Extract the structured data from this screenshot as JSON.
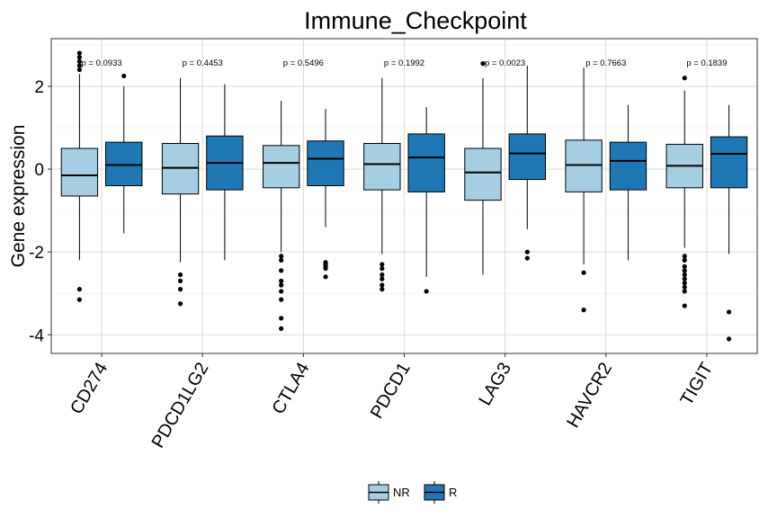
{
  "chart_data": {
    "type": "box",
    "title": "Immune_Checkpoint",
    "xlabel": "",
    "ylabel": "Gene expression",
    "ylim": [
      -4.45,
      3.15
    ],
    "yticks": [
      -4,
      -2,
      0,
      2
    ],
    "ytick_labels": [
      "-4",
      "-2",
      "0",
      "2"
    ],
    "grid": true,
    "legend_position": "bottom",
    "categories": [
      "CD274",
      "PDCD1LG2",
      "CTLA4",
      "PDCD1",
      "LAG3",
      "HAVCR2",
      "TIGIT"
    ],
    "pvalues": [
      "p = 0.0933",
      "p = 0.4453",
      "p = 0.5496",
      "p = 0.1992",
      "p = 0.0023",
      "p = 0.7663",
      "p = 0.1839"
    ],
    "series": [
      {
        "name": "NR",
        "color": "#a6cee3",
        "boxes": [
          {
            "q1": -0.65,
            "median": -0.15,
            "q3": 0.5,
            "wlo": -2.2,
            "whi": 2.3,
            "outliers": [
              2.8,
              2.7,
              2.6,
              2.5,
              2.4,
              -2.9,
              -3.15
            ]
          },
          {
            "q1": -0.6,
            "median": 0.03,
            "q3": 0.62,
            "wlo": -2.25,
            "whi": 2.2,
            "outliers": [
              -2.55,
              -2.7,
              -2.9,
              -3.25
            ]
          },
          {
            "q1": -0.45,
            "median": 0.15,
            "q3": 0.57,
            "wlo": -2.0,
            "whi": 1.65,
            "outliers": [
              -2.1,
              -2.2,
              -2.45,
              -2.7,
              -2.8,
              -2.95,
              -3.15,
              -3.6,
              -3.85
            ]
          },
          {
            "q1": -0.5,
            "median": 0.12,
            "q3": 0.62,
            "wlo": -2.05,
            "whi": 2.2,
            "outliers": [
              -2.3,
              -2.4,
              -2.55,
              -2.65,
              -2.8,
              -2.9
            ]
          },
          {
            "q1": -0.75,
            "median": -0.08,
            "q3": 0.5,
            "wlo": -2.55,
            "whi": 2.2,
            "outliers": [
              2.55
            ]
          },
          {
            "q1": -0.55,
            "median": 0.1,
            "q3": 0.7,
            "wlo": -2.3,
            "whi": 2.45,
            "outliers": [
              -2.5,
              -3.4
            ]
          },
          {
            "q1": -0.45,
            "median": 0.08,
            "q3": 0.6,
            "wlo": -1.9,
            "whi": 1.9,
            "outliers": [
              2.2,
              -2.1,
              -2.2,
              -2.35,
              -2.45,
              -2.55,
              -2.65,
              -2.75,
              -2.85,
              -2.95,
              -3.3
            ]
          }
        ]
      },
      {
        "name": "R",
        "color": "#1f78b4",
        "boxes": [
          {
            "q1": -0.4,
            "median": 0.1,
            "q3": 0.65,
            "wlo": -1.55,
            "whi": 2.0,
            "outliers": [
              2.25
            ]
          },
          {
            "q1": -0.5,
            "median": 0.15,
            "q3": 0.8,
            "wlo": -2.2,
            "whi": 2.05,
            "outliers": []
          },
          {
            "q1": -0.4,
            "median": 0.25,
            "q3": 0.68,
            "wlo": -1.4,
            "whi": 1.45,
            "outliers": [
              -2.25,
              -2.3,
              -2.35,
              -2.4,
              -2.6
            ]
          },
          {
            "q1": -0.55,
            "median": 0.28,
            "q3": 0.85,
            "wlo": -2.6,
            "whi": 1.5,
            "outliers": [
              -2.95
            ]
          },
          {
            "q1": -0.25,
            "median": 0.38,
            "q3": 0.85,
            "wlo": -1.45,
            "whi": 2.5,
            "outliers": [
              -2.0,
              -2.15
            ]
          },
          {
            "q1": -0.5,
            "median": 0.2,
            "q3": 0.65,
            "wlo": -2.2,
            "whi": 1.55,
            "outliers": []
          },
          {
            "q1": -0.45,
            "median": 0.37,
            "q3": 0.78,
            "wlo": -2.05,
            "whi": 1.55,
            "outliers": [
              -3.45,
              -4.1
            ]
          }
        ]
      }
    ]
  }
}
